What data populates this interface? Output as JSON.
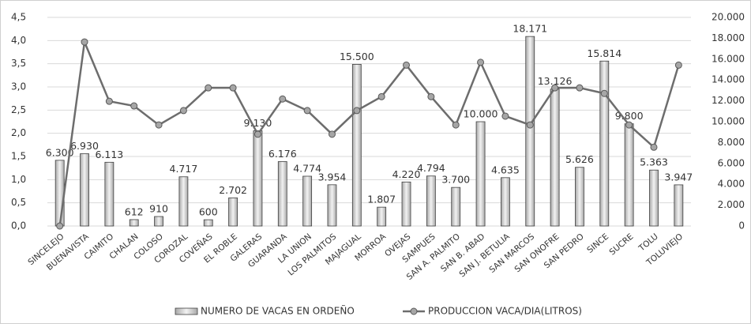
{
  "chart_data": {
    "type": "bar-line",
    "categories": [
      "SINCELEJO",
      "BUENAVISTA",
      "CAIMITO",
      "CHALAN",
      "COLOSO",
      "COROZAL",
      "COVEÑAS",
      "EL ROBLE",
      "GALERAS",
      "GUARANDA",
      "LA UNION",
      "LOS PALMITOS",
      "MAJAGUAL",
      "MORROA",
      "OVEJAS",
      "SAMPUES",
      "SAN A. PALMITO",
      "SAN B. ABAD",
      "SAN J. BETULIA",
      "SAN MARCOS",
      "SAN ONOFRE",
      "SAN PEDRO",
      "SINCE",
      "SUCRE",
      "TOLU",
      "TOLUVIEJO"
    ],
    "series": [
      {
        "name": "NUMERO DE VACAS EN ORDEÑO",
        "type": "bar",
        "axis": "y2",
        "color": "#d9d9d9",
        "values": [
          6300,
          6930,
          6113,
          612,
          910,
          4717,
          600,
          2702,
          9130,
          6176,
          4774,
          3954,
          15500,
          1807,
          4220,
          4794,
          3700,
          10000,
          4635,
          18171,
          13126,
          5626,
          15814,
          9800,
          5363,
          3947
        ],
        "value_labels": [
          "6.300",
          "6.930",
          "6.113",
          "612",
          "910",
          "4.717",
          "600",
          "2.702",
          "9.130",
          "6.176",
          "4.774",
          "3.954",
          "15.500",
          "1.807",
          "4.220",
          "4.794",
          "3.700",
          "10.000",
          "4.635",
          "18.171",
          "13.126",
          "5.626",
          "15.814",
          "9.800",
          "5.363",
          "3.947"
        ]
      },
      {
        "name": "PRODUCCION VACA/DIA(LITROS)",
        "type": "line",
        "axis": "y",
        "color": "#6d6d6d",
        "values": [
          0,
          3.97,
          2.69,
          2.59,
          2.18,
          2.49,
          2.98,
          2.98,
          1.98,
          2.74,
          2.49,
          1.98,
          2.49,
          2.79,
          3.47,
          2.79,
          2.18,
          3.53,
          2.37,
          2.18,
          2.98,
          2.98,
          2.86,
          2.18,
          1.7,
          3.47
        ]
      }
    ],
    "ylim": [
      0,
      4.5
    ],
    "yticks": [
      {
        "value": 0,
        "label": "0,0"
      },
      {
        "value": 0.5,
        "label": "0,5"
      },
      {
        "value": 1,
        "label": "1,0"
      },
      {
        "value": 1.5,
        "label": "1,5"
      },
      {
        "value": 2,
        "label": "2,0"
      },
      {
        "value": 2.5,
        "label": "2,5"
      },
      {
        "value": 3,
        "label": "3,0"
      },
      {
        "value": 3.5,
        "label": "3,5"
      },
      {
        "value": 4,
        "label": "4,0"
      },
      {
        "value": 4.5,
        "label": "4,5"
      }
    ],
    "y2lim": [
      0,
      20000
    ],
    "y2ticks": [
      0,
      {
        "value": 2000,
        "label": "2.000"
      },
      {
        "value": 4000,
        "label": "4.000"
      },
      {
        "value": 6000,
        "label": "6.000"
      },
      {
        "value": 8000,
        "label": "8.000"
      },
      {
        "value": 10000,
        "label": "10.000"
      },
      {
        "value": 12000,
        "label": "12.000"
      },
      {
        "value": 14000,
        "label": "14.000"
      },
      {
        "value": 16000,
        "label": "16.000"
      },
      {
        "value": 18000,
        "label": "18.000"
      },
      {
        "value": 20000,
        "label": "20.000"
      }
    ],
    "grid": true,
    "legend": "bottom"
  }
}
